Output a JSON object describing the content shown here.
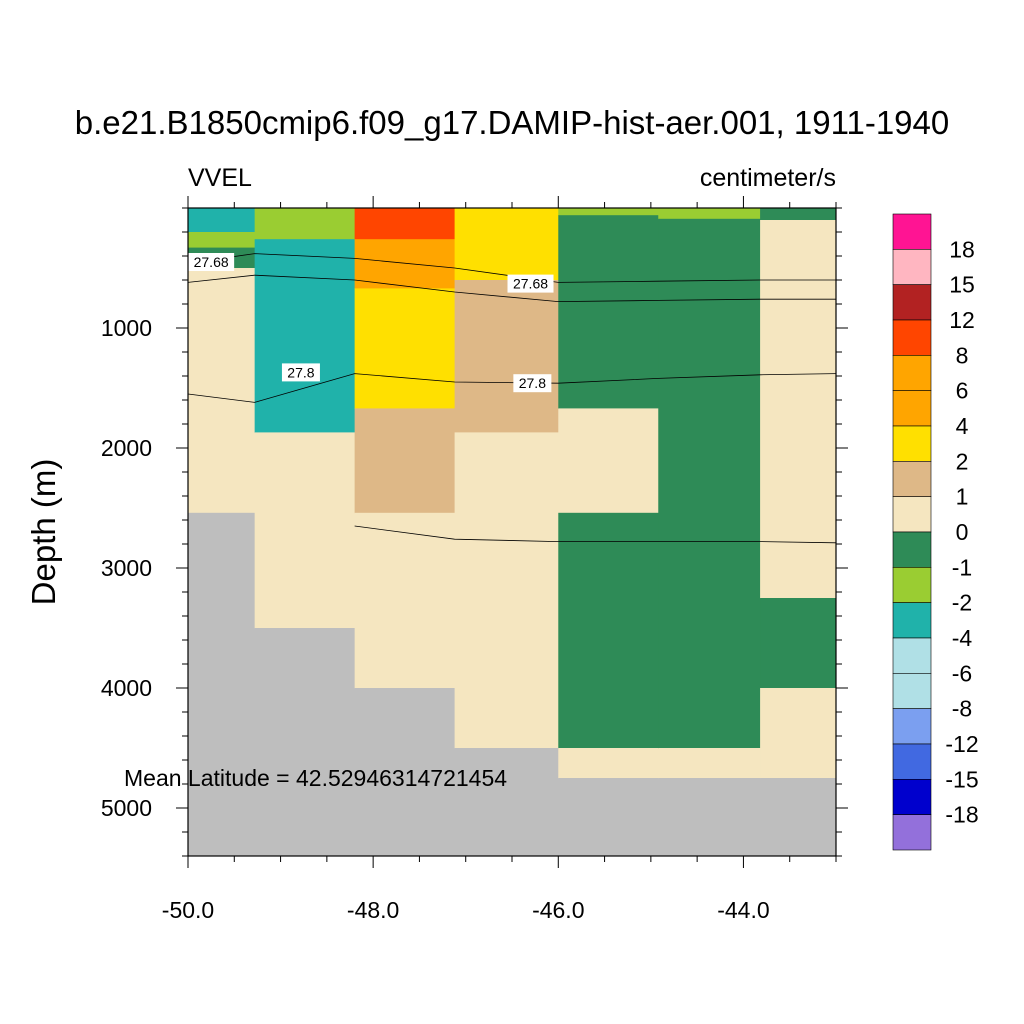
{
  "chart_data": {
    "type": "heatmap",
    "title": "b.e21.B1850cmip6.f09_g17.DAMIP-hist-aer.001, 1911-1940",
    "left_string": "VVEL",
    "right_string": "centimeter/s",
    "ylabel": "Depth (m)",
    "annotation": "Mean Latitude = 42.52946314721454",
    "xlim": [
      -50.0,
      -43.0
    ],
    "ylim": [
      0,
      5400
    ],
    "y_reversed": true,
    "x_ticks": [
      -50.0,
      -48.0,
      -46.0,
      -44.0
    ],
    "x_tick_labels": [
      "-50.0",
      "-48.0",
      "-46.0",
      "-44.0"
    ],
    "y_ticks": [
      1000,
      2000,
      3000,
      4000,
      5000
    ],
    "y_tick_labels": [
      "1000",
      "2000",
      "3000",
      "4000",
      "5000"
    ],
    "colorbar": {
      "labels": [
        "18",
        "15",
        "12",
        "8",
        "6",
        "4",
        "2",
        "1",
        "0",
        "-1",
        "-2",
        "-4",
        "-6",
        "-8",
        "-12",
        "-15",
        "-18"
      ],
      "colors": [
        "#FF1493",
        "#FFB6C1",
        "#B22222",
        "#FF4500",
        "#FFA500",
        "#FFA500",
        "#FFE000",
        "#DEB887",
        "#F5E6C0",
        "#2E8B57",
        "#9ACD32",
        "#20B2AA",
        "#B0E0E6",
        "#B0E0E6",
        "#7B9FF0",
        "#4169E1",
        "#0000CD",
        "#9370DB"
      ]
    },
    "missing_color": "#BEBEBE",
    "columns_x": [
      -50.0,
      -49.28,
      -48.2,
      -47.12,
      -46.0,
      -44.92,
      -43.82,
      -43.0
    ],
    "cells": [
      {
        "col": 0,
        "top": 0,
        "bottom": 200,
        "color": "#20B2AA"
      },
      {
        "col": 0,
        "top": 200,
        "bottom": 330,
        "color": "#9ACD32"
      },
      {
        "col": 0,
        "top": 330,
        "bottom": 500,
        "color": "#2E8B57"
      },
      {
        "col": 0,
        "top": 500,
        "bottom": 2540,
        "color": "#F5E6C0"
      },
      {
        "col": 0,
        "top": 2540,
        "bottom": 5400,
        "color": "#BEBEBE"
      },
      {
        "col": 1,
        "top": 0,
        "bottom": 260,
        "color": "#9ACD32"
      },
      {
        "col": 1,
        "top": 260,
        "bottom": 1870,
        "color": "#20B2AA"
      },
      {
        "col": 1,
        "top": 1870,
        "bottom": 3500,
        "color": "#F5E6C0"
      },
      {
        "col": 1,
        "top": 3500,
        "bottom": 5400,
        "color": "#BEBEBE"
      },
      {
        "col": 2,
        "top": 0,
        "bottom": 260,
        "color": "#FF4500"
      },
      {
        "col": 2,
        "top": 260,
        "bottom": 670,
        "color": "#FFA500"
      },
      {
        "col": 2,
        "top": 670,
        "bottom": 1670,
        "color": "#FFE000"
      },
      {
        "col": 2,
        "top": 1670,
        "bottom": 2540,
        "color": "#DEB887"
      },
      {
        "col": 2,
        "top": 2540,
        "bottom": 4000,
        "color": "#F5E6C0"
      },
      {
        "col": 2,
        "top": 4000,
        "bottom": 5400,
        "color": "#BEBEBE"
      },
      {
        "col": 3,
        "top": 0,
        "bottom": 600,
        "color": "#FFE000"
      },
      {
        "col": 3,
        "top": 600,
        "bottom": 1870,
        "color": "#DEB887"
      },
      {
        "col": 3,
        "top": 1870,
        "bottom": 4500,
        "color": "#F5E6C0"
      },
      {
        "col": 3,
        "top": 4500,
        "bottom": 5400,
        "color": "#BEBEBE"
      },
      {
        "col": 4,
        "top": 0,
        "bottom": 60,
        "color": "#9ACD32"
      },
      {
        "col": 4,
        "top": 60,
        "bottom": 1670,
        "color": "#2E8B57"
      },
      {
        "col": 4,
        "top": 1670,
        "bottom": 2540,
        "color": "#F5E6C0"
      },
      {
        "col": 4,
        "top": 2540,
        "bottom": 4500,
        "color": "#2E8B57"
      },
      {
        "col": 4,
        "top": 4500,
        "bottom": 4750,
        "color": "#F5E6C0"
      },
      {
        "col": 4,
        "top": 4750,
        "bottom": 5400,
        "color": "#BEBEBE"
      },
      {
        "col": 5,
        "top": 0,
        "bottom": 90,
        "color": "#9ACD32"
      },
      {
        "col": 5,
        "top": 90,
        "bottom": 4500,
        "color": "#2E8B57"
      },
      {
        "col": 5,
        "top": 4500,
        "bottom": 4750,
        "color": "#F5E6C0"
      },
      {
        "col": 5,
        "top": 4750,
        "bottom": 5400,
        "color": "#BEBEBE"
      },
      {
        "col": 6,
        "top": 0,
        "bottom": 100,
        "color": "#2E8B57"
      },
      {
        "col": 6,
        "top": 100,
        "bottom": 3250,
        "color": "#F5E6C0"
      },
      {
        "col": 6,
        "top": 3250,
        "bottom": 4000,
        "color": "#2E8B57"
      },
      {
        "col": 6,
        "top": 4000,
        "bottom": 4750,
        "color": "#F5E6C0"
      },
      {
        "col": 6,
        "top": 4750,
        "bottom": 5400,
        "color": "#BEBEBE"
      }
    ],
    "contours": [
      {
        "points": [
          [
            -50.0,
            460
          ],
          [
            -49.28,
            380
          ],
          [
            -48.2,
            420
          ],
          [
            -47.12,
            500
          ],
          [
            -46.0,
            620
          ],
          [
            -44.92,
            610
          ],
          [
            -43.82,
            600
          ],
          [
            -43.0,
            600
          ]
        ]
      },
      {
        "points": [
          [
            -50.0,
            620
          ],
          [
            -49.28,
            560
          ],
          [
            -48.2,
            600
          ],
          [
            -47.12,
            700
          ],
          [
            -46.0,
            780
          ],
          [
            -44.92,
            770
          ],
          [
            -43.82,
            760
          ],
          [
            -43.0,
            760
          ]
        ]
      },
      {
        "points": [
          [
            -50.0,
            1550
          ],
          [
            -49.28,
            1620
          ],
          [
            -48.2,
            1380
          ],
          [
            -47.12,
            1450
          ],
          [
            -46.0,
            1460
          ],
          [
            -44.92,
            1420
          ],
          [
            -43.82,
            1390
          ],
          [
            -43.0,
            1380
          ]
        ]
      },
      {
        "points": [
          [
            -48.2,
            2650
          ],
          [
            -47.12,
            2760
          ],
          [
            -46.0,
            2780
          ],
          [
            -44.92,
            2780
          ],
          [
            -43.82,
            2780
          ],
          [
            -43.0,
            2790
          ]
        ]
      }
    ],
    "contour_labels": [
      {
        "text": "27.68",
        "x": -49.75,
        "y": 450
      },
      {
        "text": "27.68",
        "x": -46.3,
        "y": 630
      },
      {
        "text": "27.8",
        "x": -48.78,
        "y": 1370
      },
      {
        "text": "27.8",
        "x": -46.28,
        "y": 1460
      }
    ]
  }
}
